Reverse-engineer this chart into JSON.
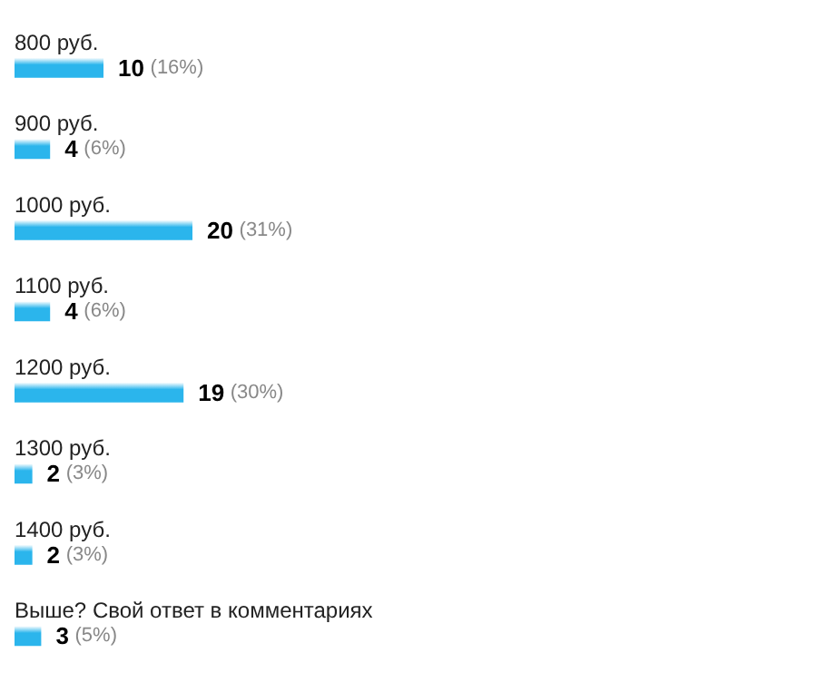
{
  "chart_data": {
    "type": "bar",
    "orientation": "horizontal",
    "categories": [
      "800 руб.",
      "900 руб.",
      "1000 руб.",
      "1100 руб.",
      "1200 руб.",
      "1300 руб.",
      "1400 руб.",
      "Выше? Свой ответ в комментариях"
    ],
    "values": [
      10,
      4,
      20,
      4,
      19,
      2,
      2,
      3
    ],
    "value_labels": [
      "10 (16%)",
      "4 (6%)",
      "20 (31%)",
      "4 (6%)",
      "19 (30%)",
      "2 (3%)",
      "2 (3%)",
      "3 (5%)"
    ],
    "color": "#2bb5ec"
  }
}
